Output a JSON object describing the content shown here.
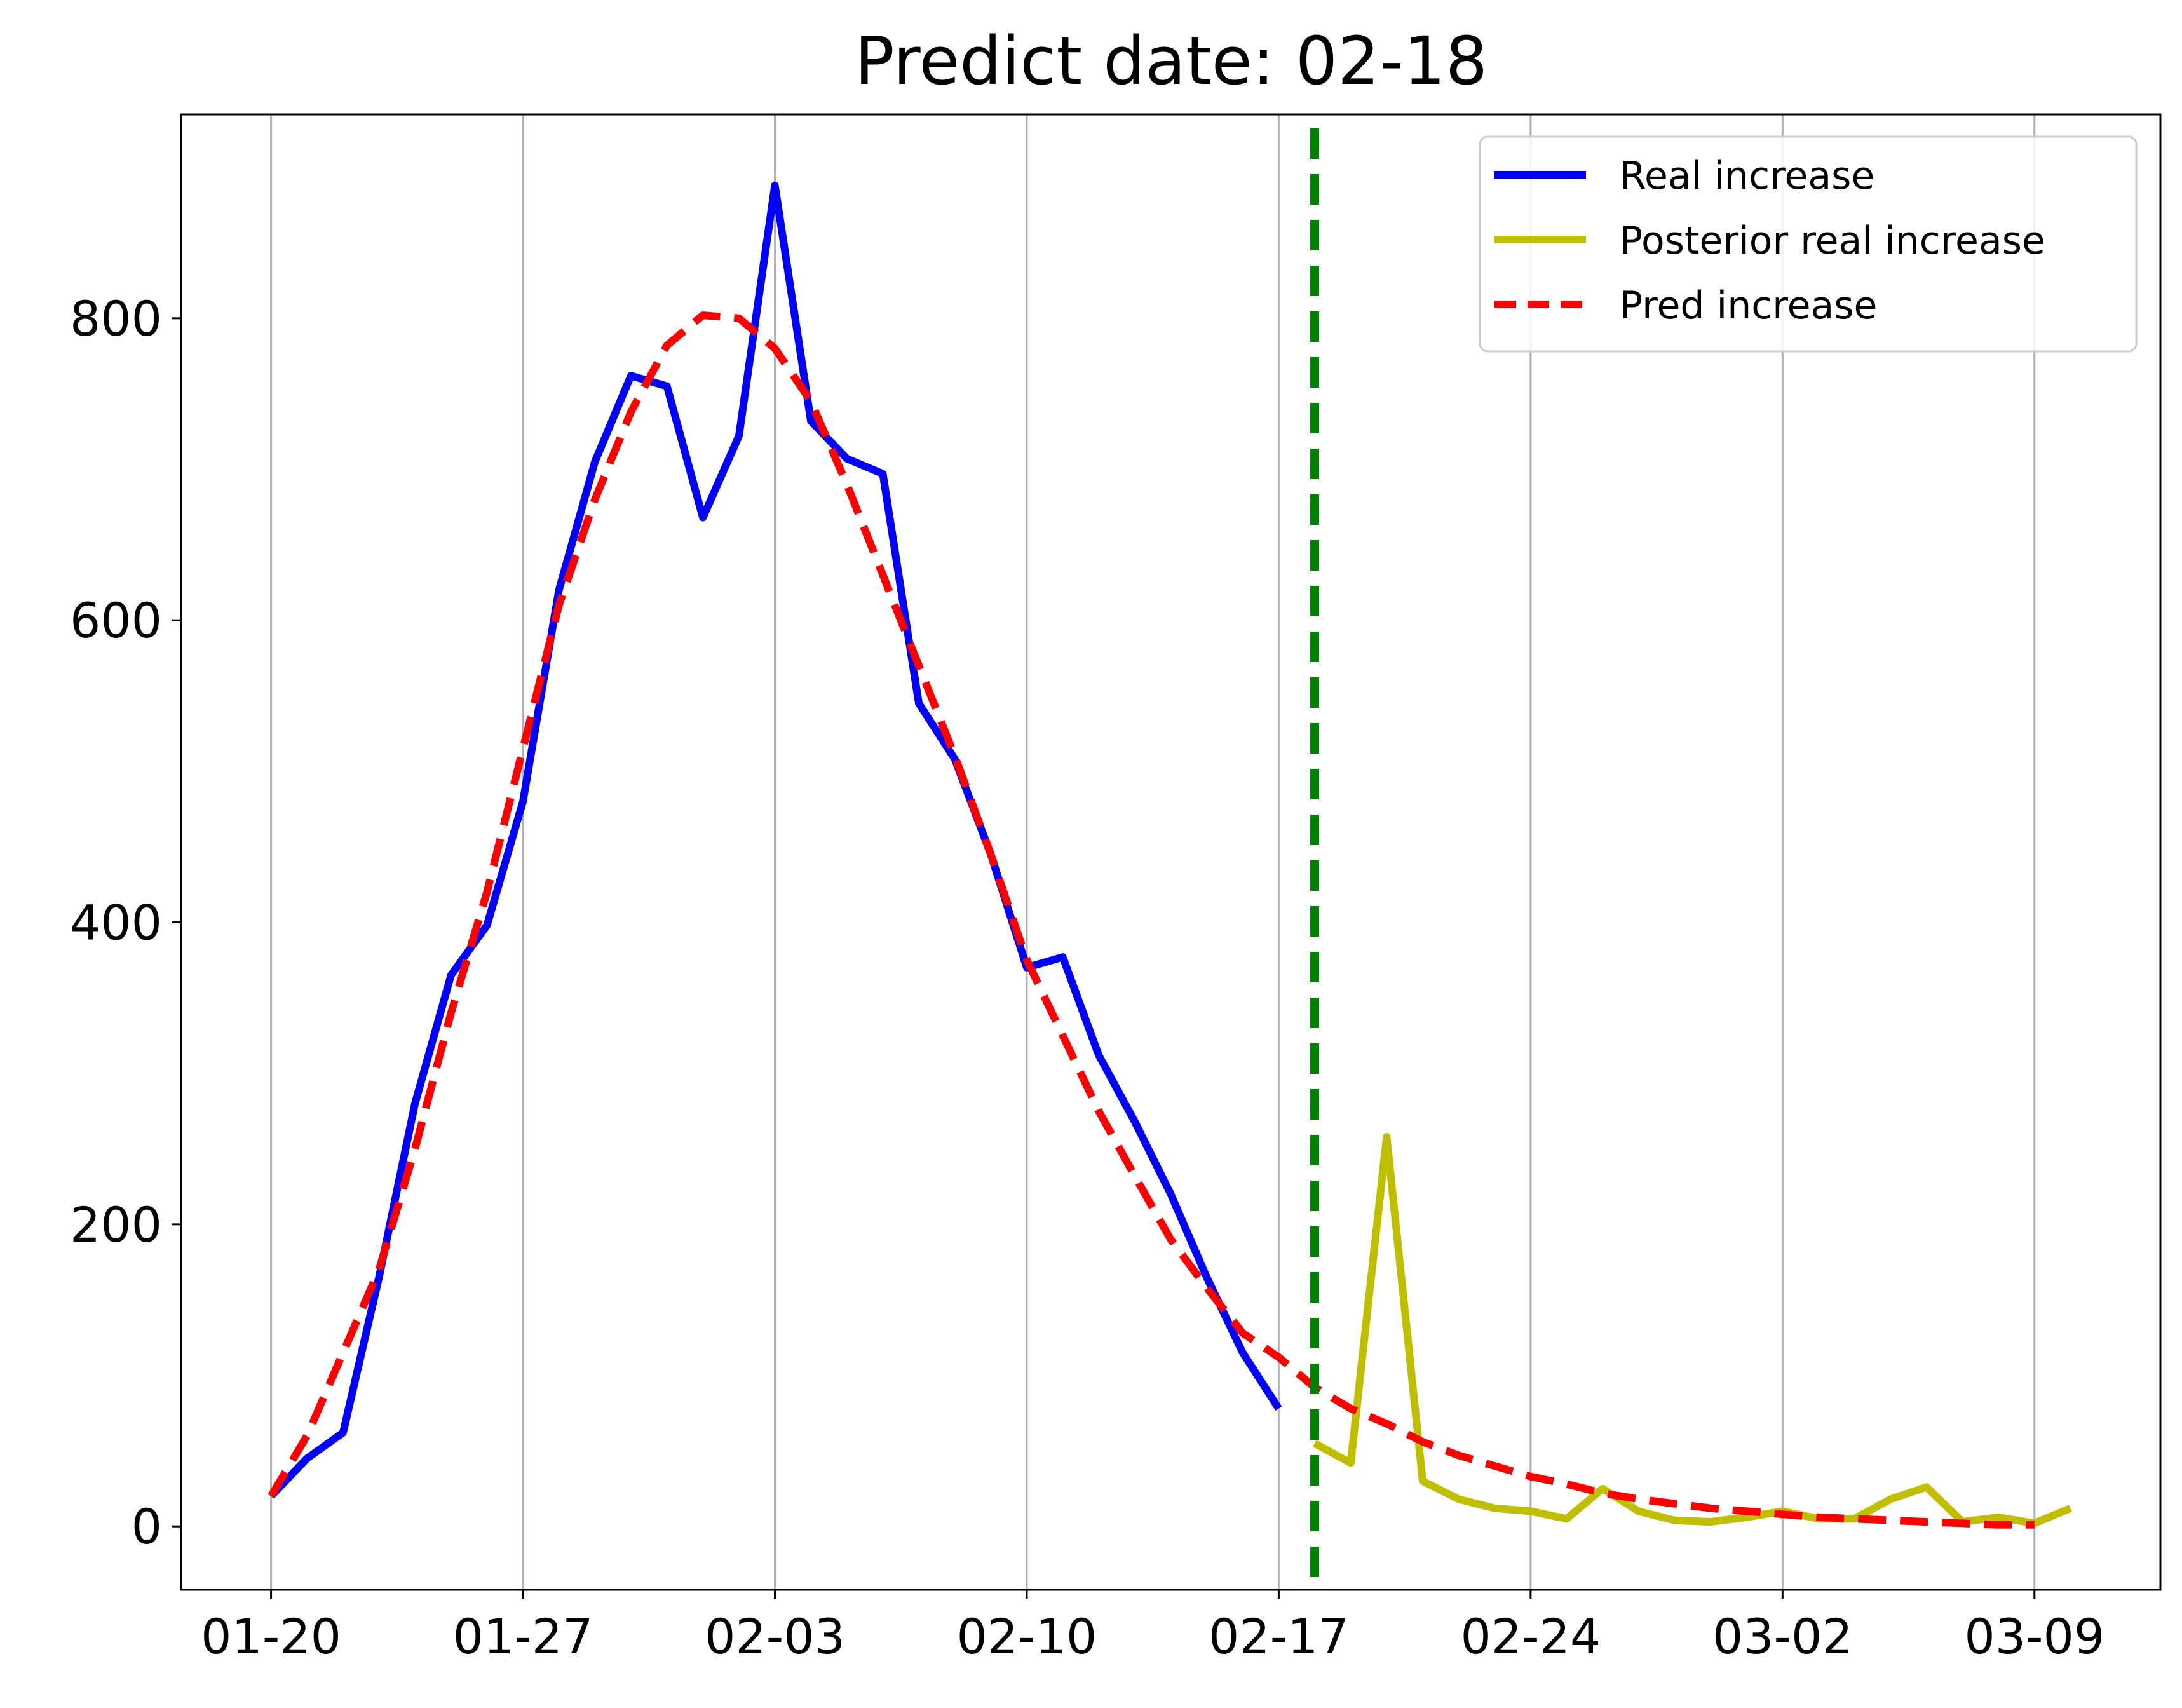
{
  "chart_data": {
    "type": "line",
    "title": "Predict date: 02-18",
    "xlabel": "",
    "ylabel": "",
    "x_tick_labels": [
      "01-20",
      "01-27",
      "02-03",
      "02-10",
      "02-17",
      "02-24",
      "03-02",
      "03-09"
    ],
    "x_tick_days": [
      0,
      7,
      14,
      21,
      28,
      35,
      42,
      49
    ],
    "y_ticks": [
      0,
      200,
      400,
      600,
      800
    ],
    "xlim": [
      -2.5,
      52.5
    ],
    "ylim": [
      -42,
      935
    ],
    "grid": "vertical",
    "legend_position": "top-right",
    "predict_day": 29,
    "series": [
      {
        "name": "Real increase",
        "color": "#0000ff",
        "style": "solid",
        "x": [
          0,
          1,
          2,
          3,
          4,
          5,
          6,
          7,
          8,
          9,
          10,
          11,
          12,
          13,
          14,
          15,
          16,
          17,
          18,
          19,
          20,
          21,
          22,
          23,
          24,
          25,
          26,
          27,
          28
        ],
        "values": [
          20,
          45,
          62,
          165,
          280,
          365,
          398,
          480,
          620,
          705,
          762,
          755,
          668,
          722,
          888,
          732,
          707,
          697,
          545,
          508,
          445,
          370,
          377,
          312,
          268,
          220,
          165,
          115,
          78
        ]
      },
      {
        "name": "Posterior real increase",
        "color": "#bfbf00",
        "style": "solid",
        "x": [
          29,
          30,
          31,
          32,
          33,
          34,
          35,
          36,
          37,
          38,
          39,
          40,
          41,
          42,
          43,
          44,
          45,
          46,
          47,
          48,
          49,
          50
        ],
        "values": [
          55,
          42,
          258,
          30,
          18,
          12,
          10,
          5,
          25,
          10,
          4,
          3,
          6,
          10,
          5,
          5,
          18,
          26,
          3,
          6,
          2,
          12
        ]
      },
      {
        "name": "Pred increase",
        "color": "#ff0000",
        "style": "dashed",
        "x": [
          0,
          1,
          2,
          3,
          4,
          5,
          6,
          7,
          8,
          9,
          10,
          11,
          12,
          13,
          14,
          15,
          16,
          17,
          18,
          19,
          20,
          21,
          22,
          23,
          24,
          25,
          26,
          27,
          28,
          29,
          30,
          31,
          32,
          33,
          34,
          35,
          36,
          37,
          38,
          39,
          40,
          41,
          42,
          43,
          44,
          45,
          46,
          47,
          48,
          49
        ],
        "values": [
          20,
          60,
          115,
          170,
          250,
          340,
          420,
          515,
          610,
          680,
          738,
          782,
          802,
          800,
          780,
          745,
          690,
          630,
          570,
          510,
          445,
          375,
          325,
          275,
          232,
          190,
          158,
          128,
          112,
          92,
          78,
          68,
          56,
          47,
          40,
          33,
          28,
          22,
          18,
          15,
          12,
          10,
          8,
          6,
          5,
          4,
          3,
          2,
          1,
          1
        ]
      }
    ]
  }
}
